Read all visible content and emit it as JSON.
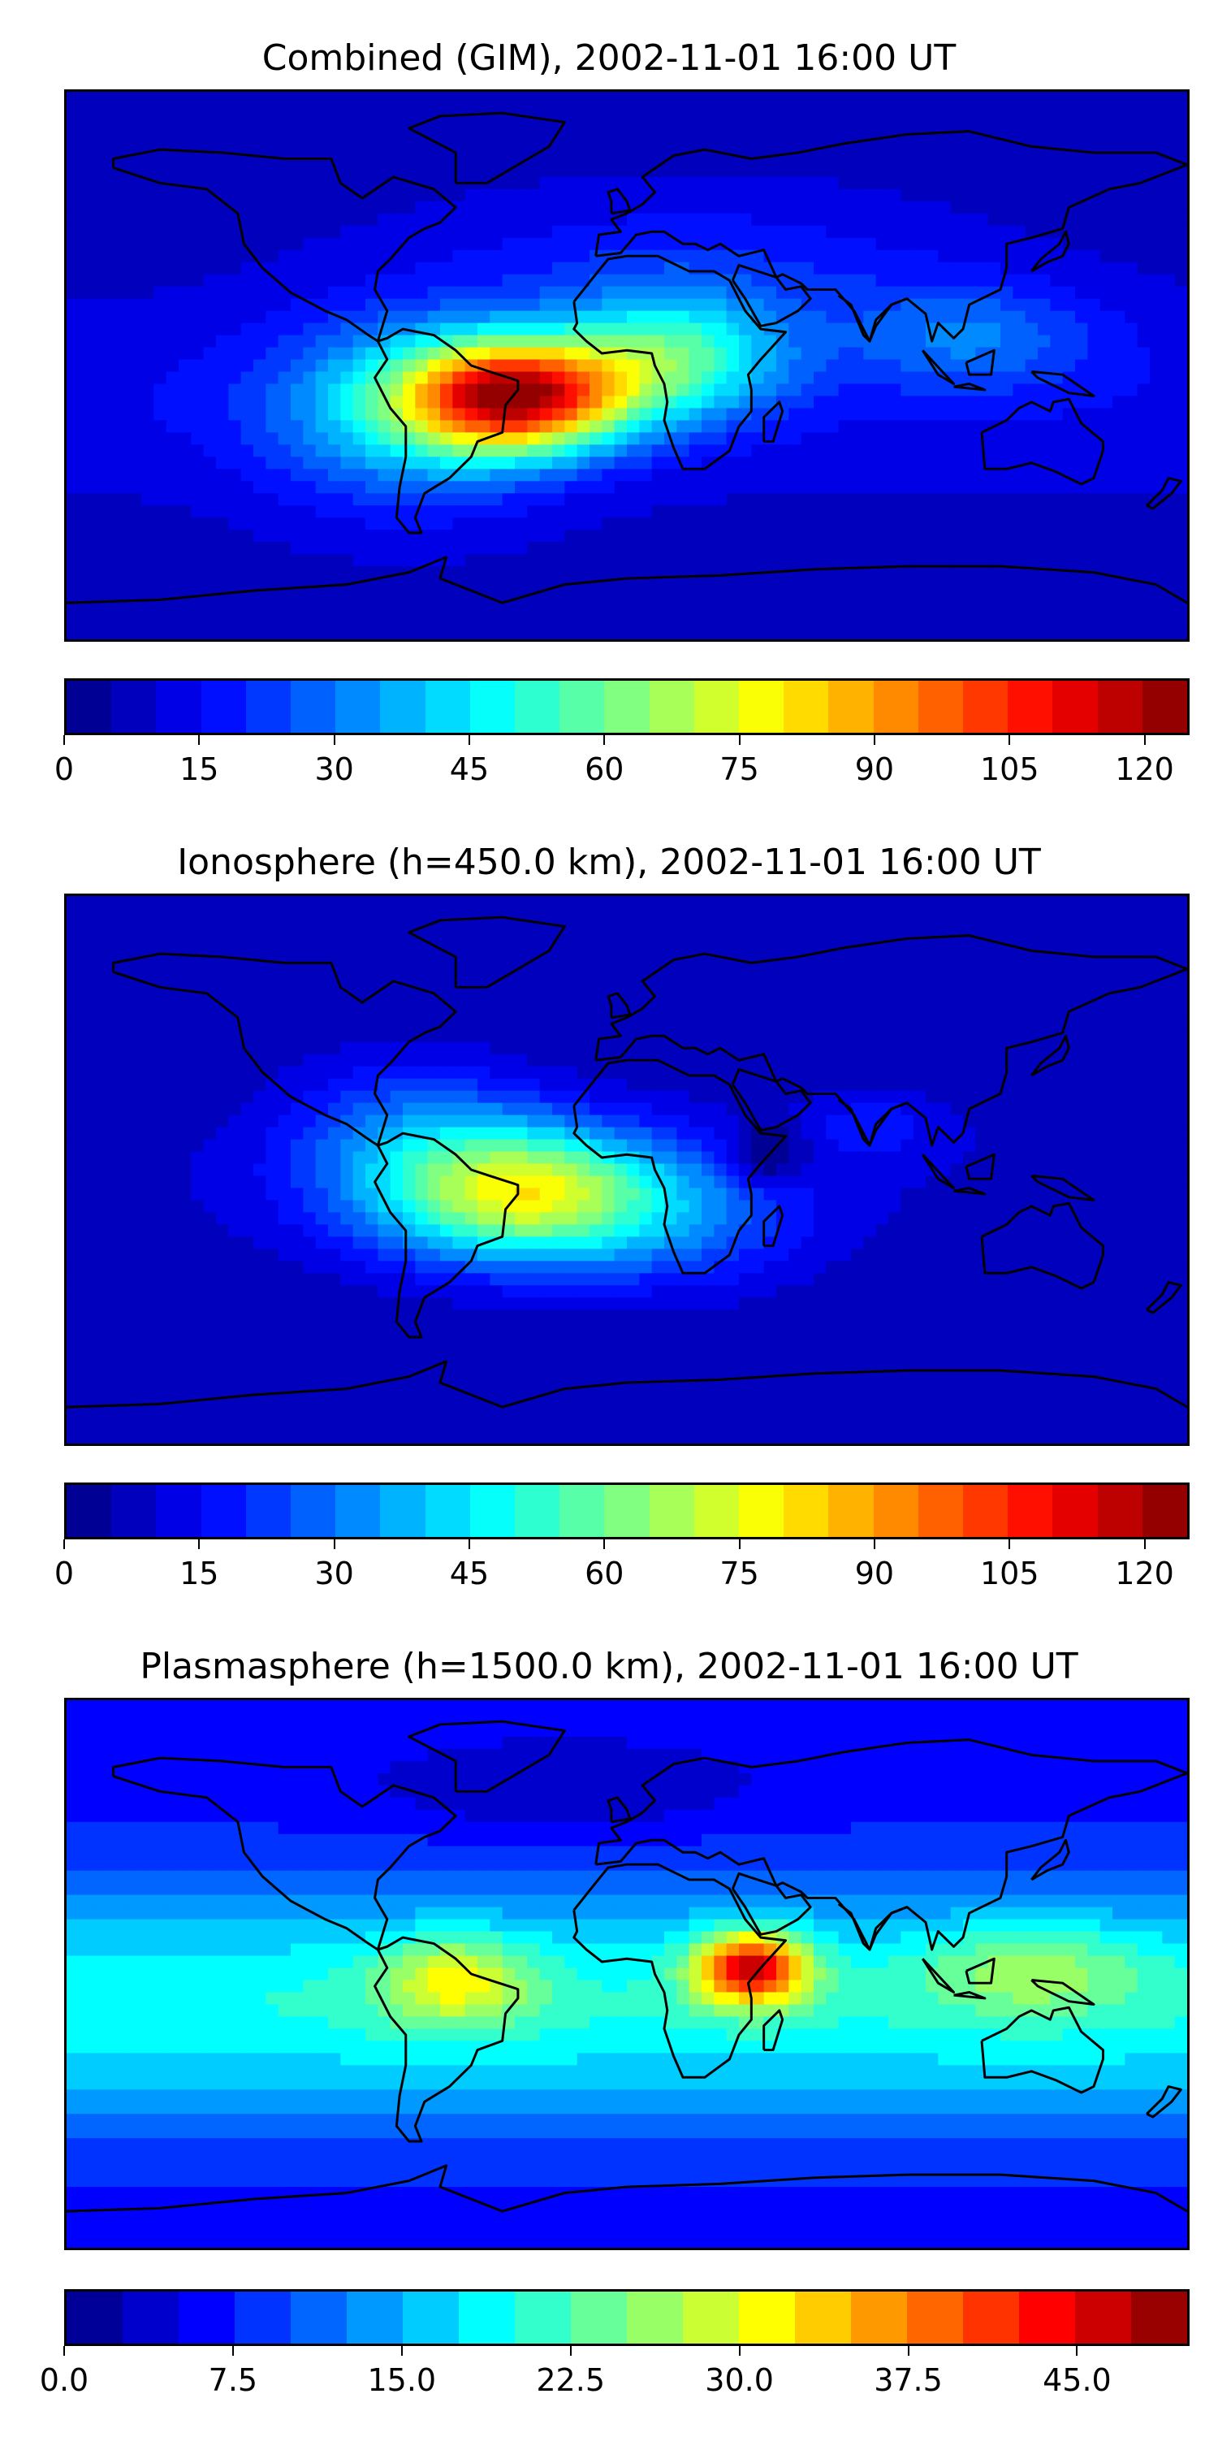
{
  "chart_data": [
    {
      "type": "heatmap",
      "title": "Combined (GIM), 2002-11-01 16:00 UT",
      "colorbar": {
        "min": 0,
        "max": 125,
        "levels": 25,
        "ticks": [
          0,
          15,
          30,
          45,
          60,
          75,
          90,
          105,
          120
        ]
      },
      "max_region": "South America / South Atlantic / Central Africa",
      "peak_value_approx": 110
    },
    {
      "type": "heatmap",
      "title": "Ionosphere  (h=450.0 km), 2002-11-01 16:00 UT",
      "colorbar": {
        "min": 0,
        "max": 125,
        "levels": 25,
        "ticks": [
          0,
          15,
          30,
          45,
          60,
          75,
          90,
          105,
          120
        ]
      },
      "max_region": "South Atlantic off Brazil",
      "peak_value_approx": 80
    },
    {
      "type": "heatmap",
      "title": "Plasmasphere (h=1500.0 km), 2002-11-01 16:00 UT",
      "colorbar": {
        "min": 0.0,
        "max": 50.0,
        "levels": 20,
        "ticks": [
          "0.0",
          "7.5",
          "15.0",
          "22.5",
          "30.0",
          "37.5",
          "45.0"
        ]
      },
      "max_region": "East Africa",
      "peak_value_approx": 46
    }
  ],
  "colormap": [
    "#00008f",
    "#0000bf",
    "#0000ef",
    "#0020ff",
    "#0050ff",
    "#0080ff",
    "#00a8ff",
    "#00d8ff",
    "#10ffe8",
    "#40ffb8",
    "#70ff88",
    "#a0ff58",
    "#d0ff28",
    "#f0f000",
    "#ffc800",
    "#ff9800",
    "#ff6800",
    "#ff3800",
    "#e80000",
    "#b80000",
    "#8b0000"
  ]
}
